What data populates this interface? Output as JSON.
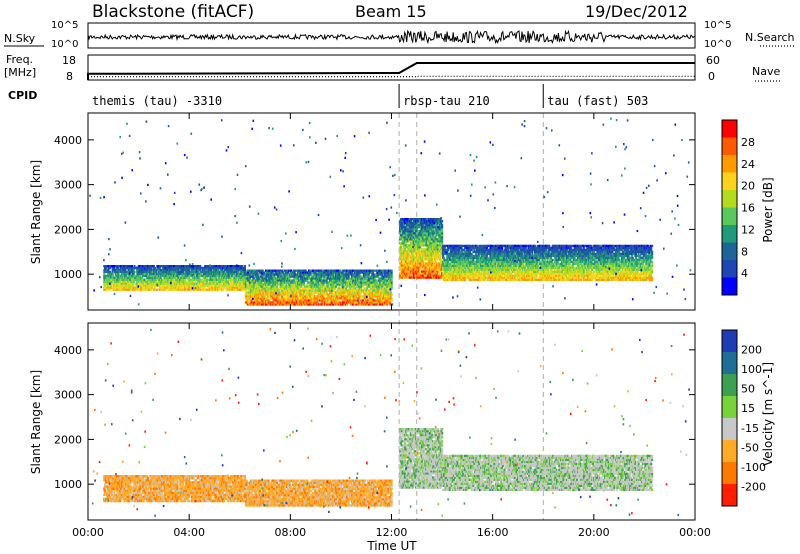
{
  "header": {
    "station": "Blackstone (fitACF)",
    "beam": "Beam 15",
    "date": "19/Dec/2012"
  },
  "top_panels": {
    "nsky_label": "N.Sky",
    "nsearch_label": "N.Search",
    "nsky_ticks": [
      "10^5",
      "10^0"
    ],
    "nsearch_ticks": [
      "10^5",
      "10^0"
    ],
    "freq_label_1": "Freq.",
    "freq_label_2": "[MHz]",
    "freq_ticks": [
      "18",
      "8"
    ],
    "nave_label": "Nave",
    "nave_ticks": [
      "60",
      "0"
    ],
    "cpid_label": "CPID",
    "cpid_segments": [
      {
        "label": "themis (tau) -3310",
        "start_hour": 0
      },
      {
        "label": "rbsp-tau 210",
        "start_hour": 12.3
      },
      {
        "label": "tau (fast) 503",
        "start_hour": 18
      }
    ],
    "freq_steps": [
      {
        "hour": 0,
        "mhz": 10.5
      },
      {
        "hour": 12.3,
        "mhz": 10.8
      },
      {
        "hour": 13.0,
        "mhz": 14.8
      },
      {
        "hour": 24,
        "mhz": 14.8
      }
    ],
    "nave_steps": [
      {
        "hour": 0,
        "value": 8
      },
      {
        "hour": 13.0,
        "value": 8
      },
      {
        "hour": 13.0,
        "value": 9
      },
      {
        "hour": 24,
        "value": 9
      }
    ]
  },
  "chart_data": [
    {
      "type": "heatmap",
      "panel": "power",
      "ylabel": "Slant Range [km]",
      "xlabel": "",
      "ylim": [
        200,
        4600
      ],
      "yticks": [
        1000,
        2000,
        3000,
        4000
      ],
      "colorbar_label": "Power [dB]",
      "colorbar_ticks": [
        "28",
        "24",
        "20",
        "16",
        "12",
        "8",
        "4"
      ],
      "colorbar_colors": [
        "#ff0000",
        "#ff5a00",
        "#ff9a00",
        "#ffd21e",
        "#b4dc1e",
        "#5ac85a",
        "#1e9b78",
        "#1e6496",
        "#1e46b4",
        "#0000ff"
      ],
      "bands": [
        {
          "h0": 0.6,
          "h1": 6.2,
          "r0": 680,
          "r1": 1250,
          "level": "mixed"
        },
        {
          "h0": 6.2,
          "h1": 12.0,
          "r0": 350,
          "r1": 1150,
          "level": "high"
        },
        {
          "h0": 12.3,
          "h1": 14.0,
          "r0": 950,
          "r1": 2300,
          "level": "high"
        },
        {
          "h0": 14.0,
          "h1": 22.3,
          "r0": 900,
          "r1": 1700,
          "level": "mixed"
        }
      ]
    },
    {
      "type": "heatmap",
      "panel": "velocity",
      "ylabel": "Slant Range [km]",
      "xlabel": "Time UT",
      "ylim": [
        200,
        4600
      ],
      "yticks": [
        1000,
        2000,
        3000,
        4000
      ],
      "xticks": [
        "00:00",
        "04:00",
        "08:00",
        "12:00",
        "16:00",
        "20:00",
        "00:00"
      ],
      "colorbar_label": "Velocity [m s^-1]",
      "colorbar_ticks": [
        "200",
        "100",
        "50",
        "15",
        "-15",
        "-50",
        "-100",
        "-200"
      ],
      "colorbar_colors": [
        "#1e3cb4",
        "#1e6e96",
        "#3ca050",
        "#78d23c",
        "#c8c8c8",
        "#ffaa28",
        "#ff7800",
        "#ff1e00"
      ],
      "bands": [
        {
          "h0": 0.6,
          "h1": 6.2,
          "r0": 650,
          "r1": 1250,
          "level": "negative"
        },
        {
          "h0": 6.2,
          "h1": 12.0,
          "r0": 550,
          "r1": 1150,
          "level": "negative"
        },
        {
          "h0": 12.3,
          "h1": 14.0,
          "r0": 950,
          "r1": 2300,
          "level": "near-zero"
        },
        {
          "h0": 14.0,
          "h1": 22.3,
          "r0": 900,
          "r1": 1700,
          "level": "near-zero"
        }
      ]
    }
  ]
}
